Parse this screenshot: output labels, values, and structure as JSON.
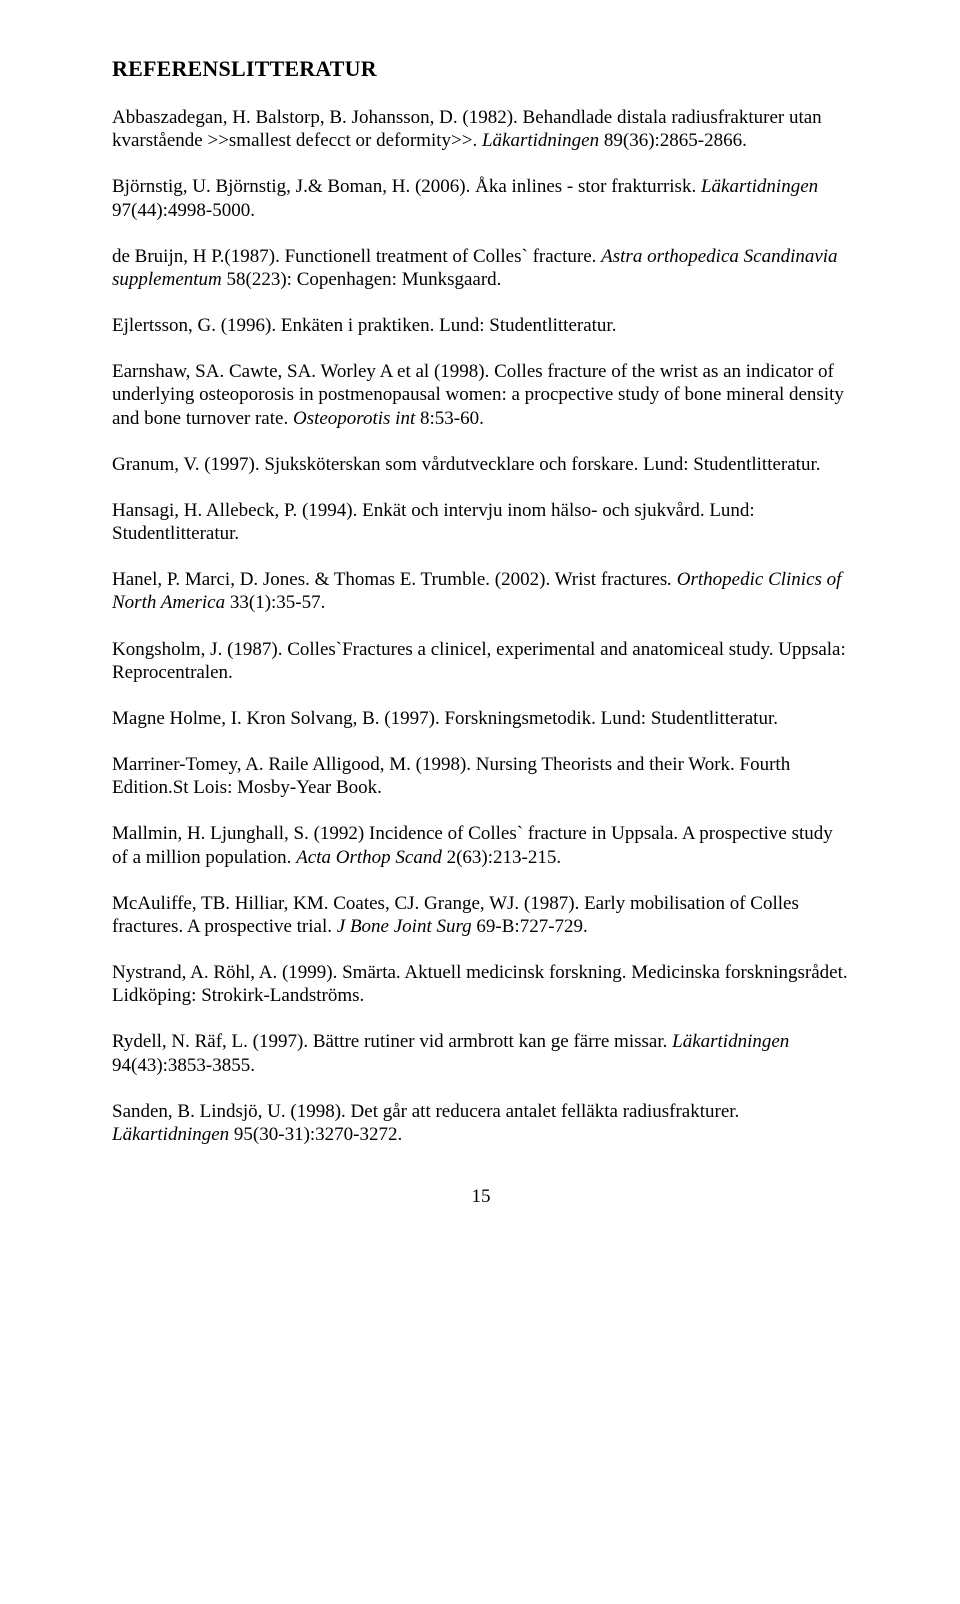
{
  "title": "REFERENSLITTERATUR",
  "refs": [
    {
      "plain_a": "Abbaszadegan, H. Balstorp, B. Johansson, D. (1982). Behandlade distala radiusfrakturer utan kvarstående >>smallest defecct or deformity>>. ",
      "italic": "Läkartidningen",
      "plain_b": " 89(36):2865-2866."
    },
    {
      "plain_a": "Björnstig, U. Björnstig, J.& Boman, H. (2006). Åka inlines - stor frakturrisk. ",
      "italic": "Läkartidningen",
      "plain_b": " 97(44):4998-5000."
    },
    {
      "plain_a": "de Bruijn, H P.(1987). Functionell treatment of Colles` fracture. ",
      "italic": "Astra orthopedica Scandinavia supplementum",
      "plain_b": "  58(223): Copenhagen: Munksgaard."
    },
    {
      "plain_a": "Ejlertsson, G. (1996). Enkäten i praktiken. Lund: Studentlitteratur.",
      "italic": "",
      "plain_b": ""
    },
    {
      "plain_a": "Earnshaw, SA. Cawte, SA. Worley A et al (1998). Colles fracture of the wrist as an indicator of underlying osteoporosis in postmenopausal women: a procpective study of bone mineral density and bone turnover rate. ",
      "italic": "Osteoporotis int",
      "plain_b": " 8:53-60."
    },
    {
      "plain_a": "Granum, V. (1997). Sjuksköterskan som vårdutvecklare och forskare. Lund: Studentlitteratur.",
      "italic": "",
      "plain_b": ""
    },
    {
      "plain_a": "Hansagi, H. Allebeck, P. (1994). Enkät och intervju inom hälso- och sjukvård. Lund: Studentlitteratur.",
      "italic": "",
      "plain_b": ""
    },
    {
      "plain_a": "Hanel, P. Marci, D. Jones. & Thomas E. Trumble. (2002). Wrist fractures",
      "italic": ". Orthopedic Clinics of North America",
      "plain_b": " 33(1):35-57."
    },
    {
      "plain_a": "Kongsholm, J. (1987). Colles`Fractures a clinicel, experimental and anatomiceal study. Uppsala: Reprocentralen.",
      "italic": "",
      "plain_b": ""
    },
    {
      "plain_a": "Magne Holme, I. Kron Solvang, B. (1997). Forskningsmetodik. Lund: Studentlitteratur.",
      "italic": "",
      "plain_b": ""
    },
    {
      "plain_a": "Marriner-Tomey, A. Raile Alligood, M. (1998). Nursing Theorists and their Work. Fourth Edition.St Lois: Mosby-Year Book.",
      "italic": "",
      "plain_b": ""
    },
    {
      "plain_a": "Mallmin, H. Ljunghall, S. (1992) Incidence of Colles` fracture in Uppsala. A prospective study of a million population. ",
      "italic": "Acta Orthop Scand",
      "plain_b": " 2(63):213-215."
    },
    {
      "plain_a": "McAuliffe, TB. Hilliar, KM. Coates, CJ. Grange, WJ. (1987). Early mobilisation of Colles fractures. A prospective trial. ",
      "italic": "J Bone Joint Surg",
      "plain_b": " 69-B:727-729."
    },
    {
      "plain_a": "Nystrand, A. Röhl, A. (1999). Smärta. Aktuell medicinsk forskning. Medicinska forskningsrådet. Lidköping: Strokirk-Landströms.",
      "italic": "",
      "plain_b": ""
    },
    {
      "plain_a": "Rydell, N. Räf, L. (1997). Bättre rutiner vid armbrott kan ge färre missar. ",
      "italic": "Läkartidningen",
      "plain_b": " 94(43):3853-3855."
    },
    {
      "plain_a": "Sanden, B. Lindsjö, U. (1998). Det går att reducera antalet felläkta radiusfrakturer. ",
      "italic": "Läkartidningen",
      "plain_b": " 95(30-31):3270-3272."
    }
  ],
  "page_number": "15"
}
